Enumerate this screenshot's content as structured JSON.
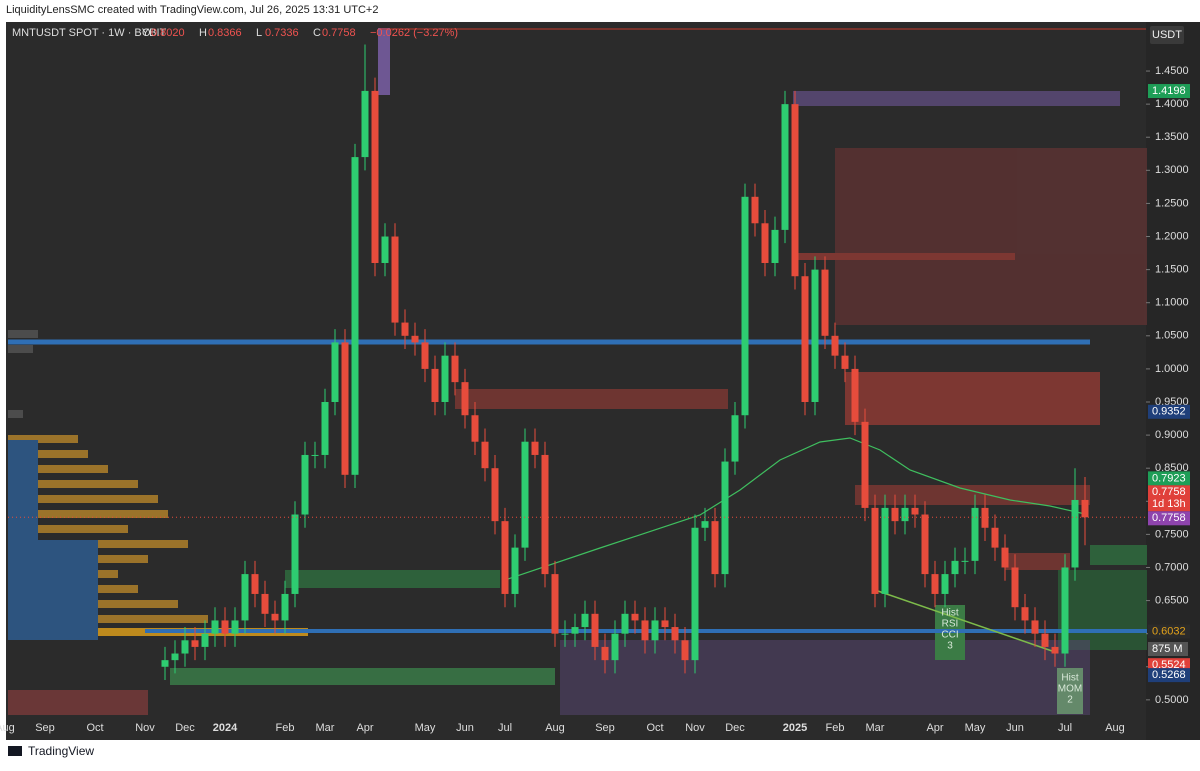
{
  "header": {
    "credit": "LiquidityLensSMC created with TradingView.com, Jul 26, 2025 13:31 UTC+2"
  },
  "footer": {
    "brand": "TradingView"
  },
  "chart_data": {
    "type": "candlestick",
    "legend": {
      "symbol": "MNTUSDT SPOT · 1W · BYBIT",
      "fields": [
        {
          "key": "O",
          "value": "0.8020"
        },
        {
          "key": "H",
          "value": "0.8366"
        },
        {
          "key": "L",
          "value": "0.7336"
        },
        {
          "key": "C",
          "value": "0.7758"
        }
      ],
      "change": "−0.0262 (−3.27%)"
    },
    "currency": "USDT",
    "up_color": "#2ecc71",
    "down_color": "#e74c3c",
    "grid": false,
    "ylim": [
      0.459,
      1.512
    ],
    "yticks": [
      {
        "value": 1.45,
        "label": "1.4500"
      },
      {
        "value": 1.4,
        "label": "1.4000"
      },
      {
        "value": 1.35,
        "label": "1.3500"
      },
      {
        "value": 1.3,
        "label": "1.3000"
      },
      {
        "value": 1.25,
        "label": "1.2500"
      },
      {
        "value": 1.2,
        "label": "1.2000"
      },
      {
        "value": 1.15,
        "label": "1.1500"
      },
      {
        "value": 1.1,
        "label": "1.1000"
      },
      {
        "value": 1.05,
        "label": "1.0500"
      },
      {
        "value": 1,
        "label": "1.0000"
      },
      {
        "value": 0.95,
        "label": "0.9500"
      },
      {
        "value": 0.9,
        "label": "0.9000"
      },
      {
        "value": 0.85,
        "label": "0.8500"
      },
      {
        "value": 0.8,
        "label": "0.8000"
      },
      {
        "value": 0.75,
        "label": "0.7500"
      },
      {
        "value": 0.7,
        "label": "0.7000"
      },
      {
        "value": 0.65,
        "label": "0.6500"
      },
      {
        "value": 0.6,
        "label": "0.6000"
      },
      {
        "value": 0.55,
        "label": "0.5500"
      },
      {
        "value": 0.5,
        "label": "0.5000"
      }
    ],
    "categories": [
      "Aug",
      null,
      null,
      null,
      "Sep",
      null,
      null,
      null,
      null,
      "Oct",
      null,
      null,
      null,
      null,
      "Nov",
      null,
      null,
      null,
      "Dec",
      null,
      null,
      null,
      "2024",
      null,
      null,
      null,
      null,
      null,
      "Feb",
      null,
      null,
      null,
      "Mar",
      null,
      null,
      null,
      "Apr",
      null,
      null,
      null,
      null,
      null,
      "May",
      null,
      null,
      null,
      "Jun",
      null,
      null,
      null,
      "Jul",
      null,
      null,
      null,
      null,
      "Aug",
      null,
      null,
      null,
      null,
      "Sep",
      null,
      null,
      null,
      null,
      "Oct",
      null,
      null,
      null,
      "Nov",
      null,
      null,
      null,
      "Dec",
      null,
      null,
      null,
      null,
      null,
      "2025",
      null,
      null,
      null,
      "Feb",
      null,
      null,
      null,
      "Mar",
      null,
      null,
      null,
      null,
      null,
      "Apr",
      null,
      null,
      null,
      "May",
      null,
      null,
      null,
      "Jun",
      null,
      null,
      null,
      null,
      "Jul",
      null,
      null,
      null,
      null,
      "Aug"
    ],
    "open": [
      null,
      null,
      null,
      null,
      null,
      null,
      null,
      null,
      null,
      null,
      null,
      null,
      null,
      null,
      null,
      null,
      0.55,
      0.56,
      0.57,
      0.59,
      0.58,
      0.6,
      0.62,
      0.6,
      0.62,
      0.69,
      0.66,
      0.63,
      0.62,
      0.66,
      0.78,
      0.87,
      0.87,
      0.95,
      1.04,
      0.84,
      1.32,
      1.42,
      1.16,
      1.2,
      1.07,
      1.05,
      1.04,
      1.0,
      0.95,
      1.02,
      0.98,
      0.93,
      0.89,
      0.85,
      0.77,
      0.66,
      0.73,
      0.89,
      0.87,
      0.69,
      0.6,
      0.6,
      0.61,
      0.63,
      0.58,
      0.56,
      0.6,
      0.63,
      0.62,
      0.59,
      0.62,
      0.61,
      0.59,
      0.56,
      0.76,
      0.77,
      0.69,
      0.86,
      0.93,
      1.26,
      1.22,
      1.16,
      1.21,
      1.4,
      1.14,
      0.95,
      1.15,
      1.05,
      1.02,
      1.0,
      0.92,
      0.79,
      0.66,
      0.79,
      0.77,
      0.79,
      0.78,
      0.69,
      0.66,
      0.69,
      0.71,
      0.71,
      0.79,
      0.76,
      0.73,
      0.7,
      0.64,
      0.62,
      0.6,
      0.58,
      0.57,
      0.7,
      0.802,
      null,
      null,
      null
    ],
    "high": [
      null,
      null,
      null,
      null,
      null,
      null,
      null,
      null,
      null,
      null,
      null,
      null,
      null,
      null,
      null,
      null,
      0.58,
      0.59,
      0.61,
      0.61,
      0.62,
      0.64,
      0.64,
      0.64,
      0.71,
      0.71,
      0.68,
      0.65,
      0.68,
      0.8,
      0.89,
      0.89,
      0.97,
      1.06,
      1.06,
      1.34,
      1.49,
      1.44,
      1.22,
      1.22,
      1.09,
      1.07,
      1.06,
      1.02,
      1.04,
      1.04,
      1.0,
      0.95,
      0.91,
      0.87,
      0.79,
      0.75,
      0.91,
      0.91,
      0.89,
      0.71,
      0.62,
      0.63,
      0.65,
      0.65,
      0.6,
      0.62,
      0.65,
      0.65,
      0.64,
      0.64,
      0.64,
      0.63,
      0.61,
      0.78,
      0.79,
      0.79,
      0.88,
      0.95,
      1.28,
      1.28,
      1.24,
      1.23,
      1.42,
      1.42,
      1.16,
      1.17,
      1.17,
      1.07,
      1.04,
      1.02,
      0.94,
      0.81,
      0.81,
      0.81,
      0.81,
      0.81,
      0.8,
      0.71,
      0.71,
      0.73,
      0.73,
      0.81,
      0.81,
      0.78,
      0.75,
      0.72,
      0.66,
      0.64,
      0.62,
      0.6,
      0.72,
      0.85,
      0.8366,
      null,
      null,
      null
    ],
    "low": [
      null,
      null,
      null,
      null,
      null,
      null,
      null,
      null,
      null,
      null,
      null,
      null,
      null,
      null,
      null,
      null,
      0.53,
      0.54,
      0.55,
      0.56,
      0.56,
      0.58,
      0.58,
      0.58,
      0.6,
      0.64,
      0.61,
      0.6,
      0.6,
      0.64,
      0.76,
      0.85,
      0.85,
      0.93,
      0.82,
      0.82,
      1.3,
      1.14,
      1.14,
      1.05,
      1.03,
      1.02,
      0.98,
      0.93,
      0.93,
      0.96,
      0.91,
      0.87,
      0.83,
      0.75,
      0.64,
      0.64,
      0.71,
      0.85,
      0.67,
      0.58,
      0.58,
      0.58,
      0.59,
      0.56,
      0.54,
      0.54,
      0.58,
      0.6,
      0.57,
      0.57,
      0.59,
      0.57,
      0.54,
      0.54,
      0.74,
      0.67,
      0.67,
      0.84,
      0.91,
      1.2,
      1.14,
      1.14,
      1.19,
      1.12,
      0.93,
      0.93,
      1.03,
      1.0,
      0.98,
      0.9,
      0.77,
      0.64,
      0.64,
      0.75,
      0.75,
      0.76,
      0.67,
      0.64,
      0.64,
      0.67,
      0.69,
      0.69,
      0.74,
      0.71,
      0.68,
      0.62,
      0.6,
      0.58,
      0.56,
      0.55,
      0.55,
      0.68,
      0.7336,
      null,
      null,
      null
    ],
    "close": [
      null,
      null,
      null,
      null,
      null,
      null,
      null,
      null,
      null,
      null,
      null,
      null,
      null,
      null,
      null,
      null,
      0.56,
      0.57,
      0.59,
      0.58,
      0.6,
      0.62,
      0.6,
      0.62,
      0.69,
      0.66,
      0.63,
      0.62,
      0.66,
      0.78,
      0.87,
      0.87,
      0.95,
      1.04,
      0.84,
      1.32,
      1.42,
      1.16,
      1.2,
      1.07,
      1.05,
      1.04,
      1.0,
      0.95,
      1.02,
      0.98,
      0.93,
      0.89,
      0.85,
      0.77,
      0.66,
      0.73,
      0.89,
      0.87,
      0.69,
      0.6,
      0.6,
      0.61,
      0.63,
      0.58,
      0.56,
      0.6,
      0.63,
      0.62,
      0.59,
      0.62,
      0.61,
      0.59,
      0.56,
      0.76,
      0.77,
      0.69,
      0.86,
      0.93,
      1.26,
      1.22,
      1.16,
      1.21,
      1.4,
      1.14,
      0.95,
      1.15,
      1.05,
      1.02,
      1.0,
      0.92,
      0.79,
      0.66,
      0.79,
      0.77,
      0.79,
      0.78,
      0.69,
      0.66,
      0.69,
      0.71,
      0.71,
      0.79,
      0.76,
      0.73,
      0.7,
      0.64,
      0.62,
      0.6,
      0.58,
      0.57,
      0.7,
      0.802,
      0.7758,
      null,
      null,
      null
    ],
    "price_labels": [
      {
        "value": 1.4198,
        "label": "1.4198",
        "color": "#1e9e57"
      },
      {
        "value": 0.9352,
        "label": "0.9352",
        "color": "#1f3f7a"
      },
      {
        "value": 0.7923,
        "label": "0.7923",
        "color": "#1e9e57"
      },
      {
        "value": 0.7758,
        "label": "0.7758",
        "color": "#e0403a",
        "sublabel": "1d 13h"
      },
      {
        "value": 0.7758,
        "label": "0.7758",
        "color": "#8e44ad"
      },
      {
        "value": 0.6032,
        "label": "0.6032",
        "color": "#2b2b2b"
      },
      {
        "value": 0.5524,
        "label": "0.5524",
        "color": "#e0403a"
      },
      {
        "value": 0.5268,
        "label": "0.5268",
        "color": "#1f3f7a"
      }
    ],
    "volume_label": "875 M",
    "annotations": [
      {
        "lines": [
          "Hist",
          "RSI",
          "CCI",
          "3"
        ]
      },
      {
        "lines": [
          "Hist",
          "MOM",
          "2"
        ]
      }
    ]
  }
}
